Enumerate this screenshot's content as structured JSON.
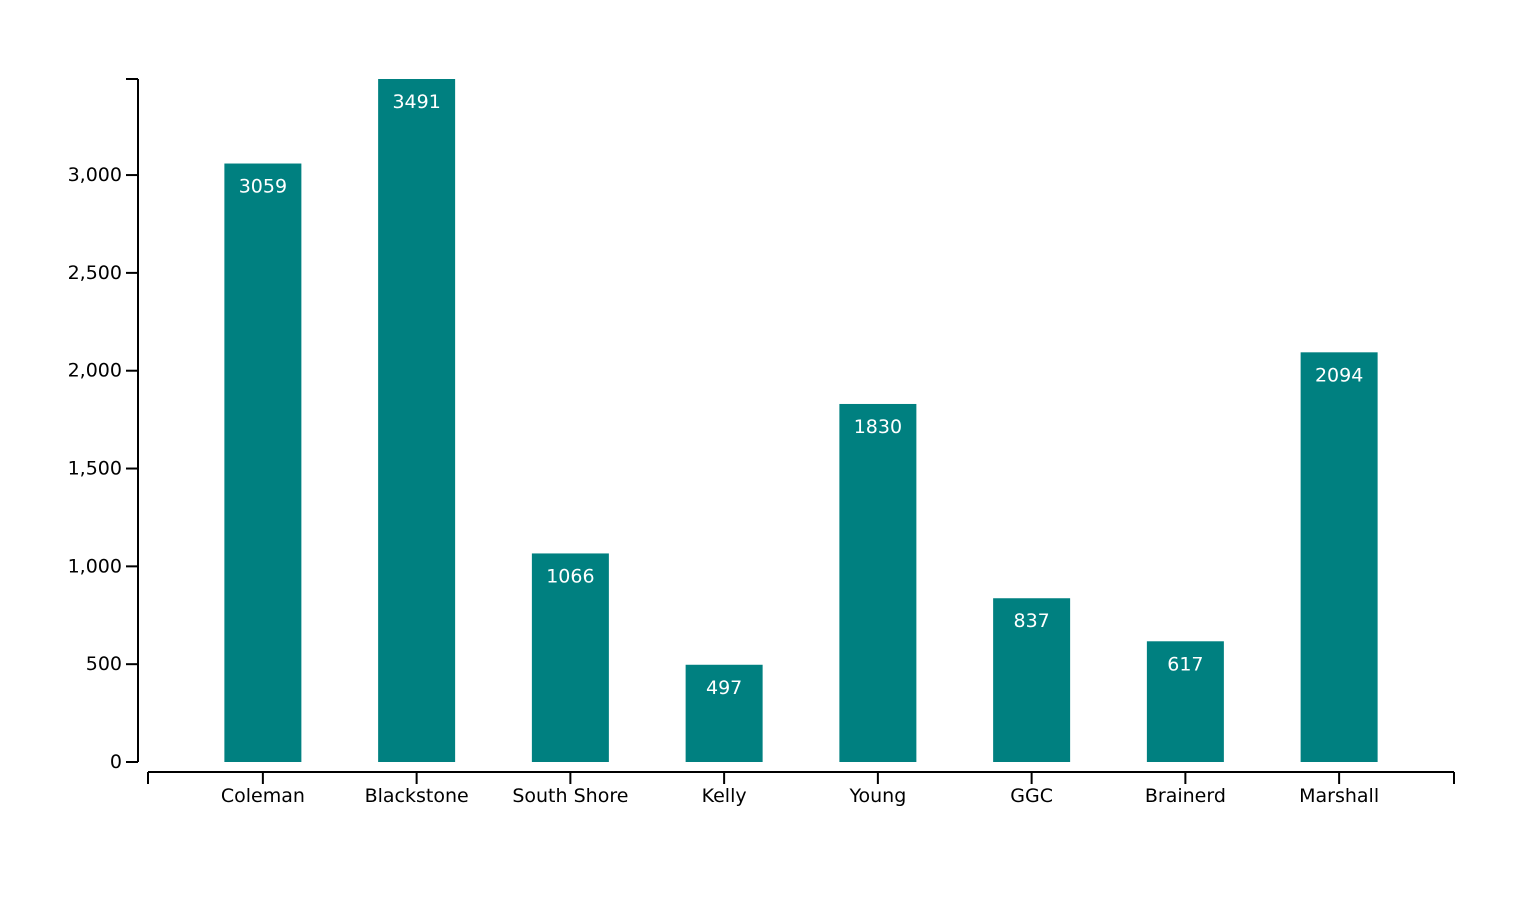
{
  "chart_data": {
    "type": "bar",
    "title": "",
    "xlabel": "",
    "ylabel": "",
    "categories": [
      "Coleman",
      "Blackstone",
      "South Shore",
      "Kelly",
      "Young",
      "GGC",
      "Brainerd",
      "Marshall"
    ],
    "values": [
      3059,
      3491,
      1066,
      497,
      1830,
      837,
      617,
      2094
    ],
    "value_labels": [
      "3059",
      "3491",
      "1066",
      "497",
      "1830",
      "837",
      "617",
      "2094"
    ],
    "ylim": [
      0,
      3491
    ],
    "yticks": [
      0,
      500,
      1000,
      1500,
      2000,
      2500,
      3000
    ],
    "ytick_labels": [
      "0",
      "500",
      "1,000",
      "1,500",
      "2,000",
      "2,500",
      "3,000"
    ],
    "grid": false,
    "legend": "none",
    "bar_color": "#008080",
    "data_label_color": "#ffffff",
    "axis_color": "#000000"
  }
}
